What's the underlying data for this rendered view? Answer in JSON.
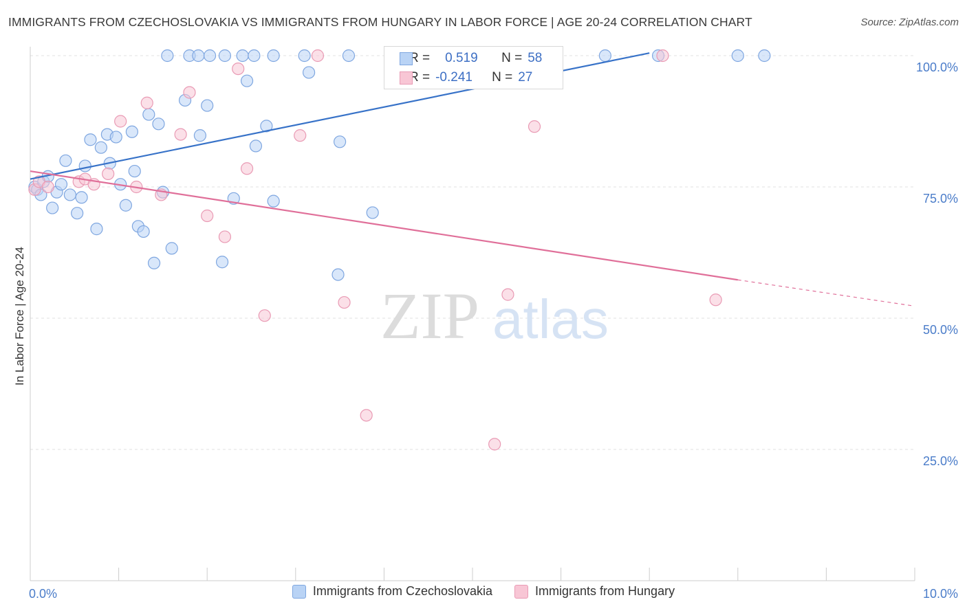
{
  "title": "IMMIGRANTS FROM CZECHOSLOVAKIA VS IMMIGRANTS FROM HUNGARY IN LABOR FORCE | AGE 20-24 CORRELATION CHART",
  "source": "Source: ZipAtlas.com",
  "watermark": {
    "zip": "ZIP",
    "atlas": "atlas"
  },
  "colors": {
    "blue_fill": "#b9d3f5",
    "blue_stroke": "#7ea6e0",
    "blue_line": "#3772c8",
    "pink_fill": "#f8c6d5",
    "pink_stroke": "#e99ab4",
    "pink_line": "#e06f99",
    "accent_text": "#4a7cc9",
    "grid": "#e2e2e2"
  },
  "stats": {
    "r_label": "R =",
    "n_label": "N =",
    "series1": {
      "r": "0.519",
      "n": "58"
    },
    "series2": {
      "r": "-0.241",
      "n": "27"
    }
  },
  "chart_data": {
    "type": "scatter",
    "title": "IMMIGRANTS FROM CZECHOSLOVAKIA VS IMMIGRANTS FROM HUNGARY IN LABOR FORCE | AGE 20-24 CORRELATION CHART",
    "xlabel": "",
    "ylabel": "In Labor Force | Age 20-24",
    "xlim": [
      0,
      10
    ],
    "ylim": [
      2,
      104
    ],
    "x_ticks": [
      {
        "value": 0,
        "label": "0.0%"
      },
      {
        "value": 10,
        "label": "10.0%"
      }
    ],
    "y_ticks": [
      {
        "value": 25,
        "label": "25.0%"
      },
      {
        "value": 50,
        "label": "50.0%"
      },
      {
        "value": 75,
        "label": "75.0%"
      },
      {
        "value": 100,
        "label": "100.0%"
      }
    ],
    "grid": true,
    "legend_position": "bottom",
    "series": [
      {
        "name": "Immigrants from Czechoslovakia",
        "r": 0.519,
        "n": 58,
        "trend": {
          "x0": 0,
          "y0": 76.5,
          "x1": 7.0,
          "y1": 100.5
        },
        "points": [
          [
            0.05,
            75.0
          ],
          [
            0.08,
            74.5
          ],
          [
            0.12,
            73.5
          ],
          [
            0.15,
            76.0
          ],
          [
            0.2,
            77.0
          ],
          [
            0.25,
            71.0
          ],
          [
            0.3,
            74.0
          ],
          [
            0.35,
            75.5
          ],
          [
            0.4,
            80.0
          ],
          [
            0.45,
            73.5
          ],
          [
            0.53,
            70.0
          ],
          [
            0.58,
            73.0
          ],
          [
            0.62,
            79.0
          ],
          [
            0.68,
            84.0
          ],
          [
            0.75,
            67.0
          ],
          [
            0.8,
            82.5
          ],
          [
            0.87,
            85.0
          ],
          [
            0.9,
            79.5
          ],
          [
            0.97,
            84.5
          ],
          [
            1.02,
            75.5
          ],
          [
            1.08,
            71.5
          ],
          [
            1.15,
            85.5
          ],
          [
            1.18,
            78.0
          ],
          [
            1.22,
            67.5
          ],
          [
            1.28,
            66.5
          ],
          [
            1.34,
            88.8
          ],
          [
            1.4,
            60.5
          ],
          [
            1.45,
            87.0
          ],
          [
            1.5,
            74.0
          ],
          [
            1.6,
            63.3
          ],
          [
            1.75,
            91.5
          ],
          [
            1.92,
            84.8
          ],
          [
            2.0,
            90.5
          ],
          [
            2.17,
            60.7
          ],
          [
            2.3,
            72.8
          ],
          [
            2.45,
            95.2
          ],
          [
            2.55,
            82.8
          ],
          [
            2.67,
            86.6
          ],
          [
            2.75,
            72.3
          ],
          [
            3.15,
            96.8
          ],
          [
            3.48,
            58.3
          ],
          [
            3.5,
            83.6
          ],
          [
            3.87,
            70.1
          ],
          [
            1.55,
            100
          ],
          [
            1.8,
            100
          ],
          [
            1.9,
            100
          ],
          [
            2.03,
            100
          ],
          [
            2.2,
            100
          ],
          [
            2.4,
            100
          ],
          [
            2.53,
            100
          ],
          [
            2.75,
            100
          ],
          [
            3.1,
            100
          ],
          [
            3.6,
            100
          ],
          [
            4.4,
            100
          ],
          [
            6.5,
            100
          ],
          [
            7.1,
            100
          ],
          [
            8.0,
            100
          ],
          [
            8.3,
            100
          ]
        ]
      },
      {
        "name": "Immigrants from Hungary",
        "r": -0.241,
        "n": 27,
        "trend": {
          "x0": 0,
          "y0": 78.0,
          "x1": 8.0,
          "y1": 57.3,
          "dash_to_x": 10.0,
          "dash_to_y": 52.3
        },
        "points": [
          [
            0.05,
            74.5
          ],
          [
            0.1,
            76.0
          ],
          [
            0.2,
            75.0
          ],
          [
            0.55,
            76.0
          ],
          [
            0.62,
            76.5
          ],
          [
            0.72,
            75.5
          ],
          [
            0.88,
            77.5
          ],
          [
            1.02,
            87.5
          ],
          [
            1.2,
            75.0
          ],
          [
            1.32,
            91.0
          ],
          [
            1.48,
            73.5
          ],
          [
            1.7,
            85.0
          ],
          [
            1.8,
            93.0
          ],
          [
            2.0,
            69.5
          ],
          [
            2.2,
            65.5
          ],
          [
            2.35,
            97.5
          ],
          [
            2.45,
            78.5
          ],
          [
            2.65,
            50.5
          ],
          [
            3.05,
            84.8
          ],
          [
            3.25,
            100
          ],
          [
            3.55,
            53.0
          ],
          [
            3.8,
            31.5
          ],
          [
            5.25,
            26.0
          ],
          [
            5.4,
            54.5
          ],
          [
            5.7,
            86.5
          ],
          [
            7.15,
            100
          ],
          [
            7.75,
            53.5
          ]
        ]
      }
    ]
  }
}
